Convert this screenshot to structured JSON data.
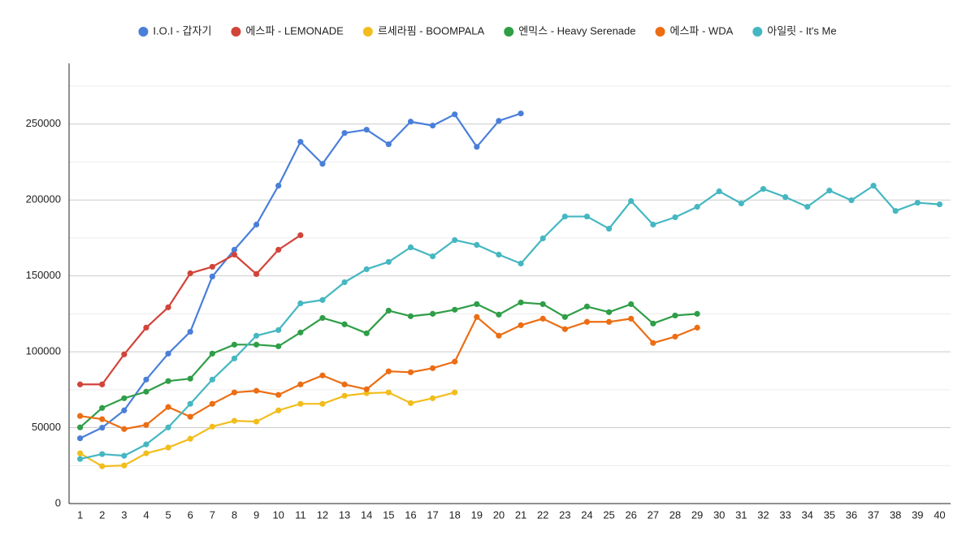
{
  "chart_data": {
    "type": "line",
    "categories": [
      "1",
      "2",
      "3",
      "4",
      "5",
      "6",
      "7",
      "8",
      "9",
      "10",
      "11",
      "12",
      "13",
      "14",
      "15",
      "16",
      "17",
      "18",
      "19",
      "20",
      "21",
      "22",
      "23",
      "24",
      "25",
      "26",
      "27",
      "28",
      "29",
      "30",
      "31",
      "32",
      "33",
      "34",
      "35",
      "36",
      "37",
      "38",
      "39",
      "40"
    ],
    "series": [
      {
        "name": "I.O.I - 갑자기",
        "color": "#4a7fd9",
        "values": [
          43000,
          50000,
          61400,
          81700,
          98800,
          113200,
          149600,
          167200,
          183800,
          209400,
          238300,
          223800,
          244100,
          246300,
          236700,
          251600,
          249000,
          256400,
          235000,
          252100,
          257000,
          null,
          null,
          null,
          null,
          null,
          null,
          null,
          null,
          null,
          null,
          null,
          null,
          null,
          null,
          null,
          null,
          null,
          null,
          null
        ]
      },
      {
        "name": "에스파 - LEMONADE",
        "color": "#d2443a",
        "values": [
          78500,
          78500,
          98300,
          115900,
          129300,
          151700,
          156000,
          164000,
          151200,
          167200,
          176800,
          null,
          null,
          null,
          null,
          null,
          null,
          null,
          null,
          null,
          null,
          null,
          null,
          null,
          null,
          null,
          null,
          null,
          null,
          null,
          null,
          null,
          null,
          null,
          null,
          null,
          null,
          null,
          null,
          null
        ]
      },
      {
        "name": "르세라핌 - BOOMPALA",
        "color": "#f2bd1c",
        "values": [
          33100,
          24600,
          25100,
          33100,
          36900,
          42700,
          50700,
          54500,
          54000,
          61400,
          65700,
          65700,
          71000,
          72700,
          73200,
          66200,
          69400,
          73200,
          null,
          null,
          null,
          null,
          null,
          null,
          null,
          null,
          null,
          null,
          null,
          null,
          null,
          null,
          null,
          null,
          null,
          null,
          null,
          null,
          null,
          null
        ]
      },
      {
        "name": "엔믹스 - Heavy Serenade",
        "color": "#2f9e47",
        "values": [
          50200,
          63000,
          69400,
          73700,
          80700,
          82300,
          98800,
          104700,
          104700,
          103600,
          112700,
          122300,
          118100,
          112200,
          127100,
          123400,
          125000,
          127700,
          131400,
          124500,
          132500,
          131400,
          122900,
          129800,
          126100,
          131400,
          118600,
          123900,
          125000,
          null,
          null,
          null,
          null,
          null,
          null,
          null,
          null,
          null,
          null,
          null
        ]
      },
      {
        "name": "에스파 - WDA",
        "color": "#ec6d13",
        "values": [
          57700,
          55600,
          49100,
          51800,
          63600,
          57200,
          65700,
          73200,
          74300,
          71600,
          78500,
          84400,
          78500,
          75300,
          87100,
          86500,
          89200,
          93500,
          122900,
          110600,
          117500,
          121800,
          114900,
          119700,
          119700,
          121800,
          105800,
          110000,
          115900,
          null,
          null,
          null,
          null,
          null,
          null,
          null,
          null,
          null,
          null,
          null
        ]
      },
      {
        "name": "아일릿 - It's Me",
        "color": "#45b7c1",
        "values": [
          29400,
          32600,
          31500,
          39000,
          50200,
          65700,
          81700,
          95600,
          110600,
          114300,
          131900,
          134100,
          145800,
          154400,
          159200,
          168800,
          162900,
          173600,
          170400,
          164000,
          158100,
          174700,
          189100,
          189100,
          181100,
          199300,
          183800,
          188600,
          195500,
          205700,
          197700,
          207300,
          201900,
          195500,
          206200,
          199800,
          209400,
          192800,
          198200,
          197100
        ]
      }
    ],
    "ylim": [
      0,
      290000
    ],
    "yticks": [
      0,
      50000,
      100000,
      150000,
      200000,
      250000
    ],
    "yminor": [
      25000,
      75000,
      125000,
      175000,
      225000,
      275000
    ],
    "grid": true,
    "legend": "top"
  }
}
